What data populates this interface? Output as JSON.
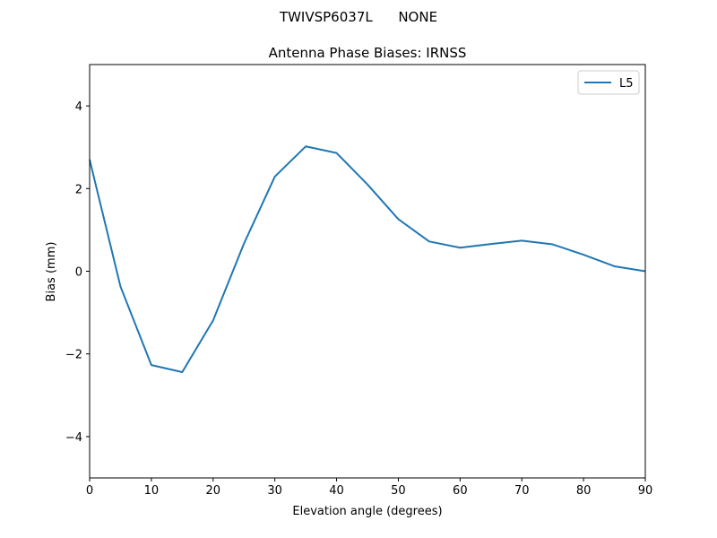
{
  "figure": {
    "suptitle": "TWIVSP6037L      NONE"
  },
  "chart_data": {
    "type": "line",
    "title": "Antenna Phase Biases: IRNSS",
    "xlabel": "Elevation angle (degrees)",
    "ylabel": "Bias (mm)",
    "xlim": [
      0,
      90
    ],
    "ylim": [
      -5,
      5
    ],
    "xticks": [
      0,
      10,
      20,
      30,
      40,
      50,
      60,
      70,
      80,
      90
    ],
    "yticks": [
      -4,
      -2,
      0,
      2,
      4
    ],
    "xtick_labels": [
      "0",
      "10",
      "20",
      "30",
      "40",
      "50",
      "60",
      "70",
      "80",
      "90"
    ],
    "ytick_labels": [
      "−4",
      "−2",
      "0",
      "2",
      "4"
    ],
    "grid": false,
    "legend_position": "top-right",
    "series": [
      {
        "name": "L5",
        "color": "#1f77b4",
        "x": [
          0,
          5,
          10,
          15,
          20,
          25,
          30,
          35,
          40,
          45,
          50,
          55,
          60,
          65,
          70,
          75,
          80,
          85,
          90
        ],
        "y": [
          2.7,
          -0.37,
          -2.27,
          -2.44,
          -1.19,
          0.67,
          2.29,
          3.02,
          2.86,
          2.1,
          1.26,
          0.72,
          0.57,
          0.66,
          0.74,
          0.65,
          0.4,
          0.12,
          0.0
        ]
      }
    ]
  }
}
